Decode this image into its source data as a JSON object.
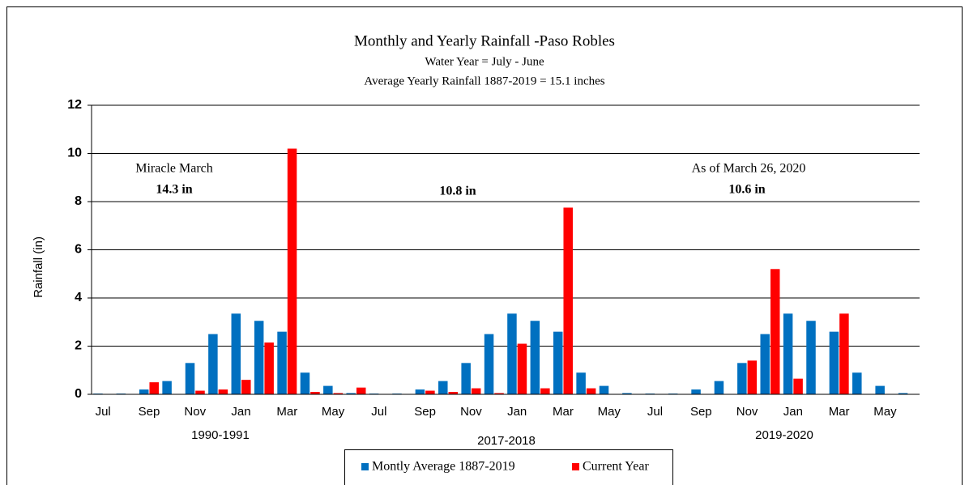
{
  "chart_data": {
    "type": "bar",
    "title": "Monthly and Yearly Rainfall -Paso Robles",
    "subtitle": [
      "Water Year = July  - June",
      "Average  Yearly  Rainfall  1887-2019 = 15.1 inches"
    ],
    "y_label": "Rainfall (in)",
    "categories": [
      "Jul",
      null,
      "Sep",
      null,
      "Nov",
      null,
      "Jan",
      null,
      "Mar",
      null,
      "May",
      null,
      "Jul",
      null,
      "Sep",
      null,
      "Nov",
      null,
      "Jan",
      null,
      "Mar",
      null,
      "May",
      null,
      "Jul",
      null,
      "Sep",
      null,
      "Nov",
      null,
      "Jan",
      null,
      "Mar",
      null,
      "May",
      null
    ],
    "groups": [
      "1990-1991",
      "2017-2018",
      "2019-2020"
    ],
    "series": [
      {
        "name": "Montly Average 1887-2019",
        "color": "#0070c0",
        "values": [
          0.03,
          0.03,
          0.2,
          0.55,
          1.3,
          2.5,
          3.35,
          3.05,
          2.6,
          0.9,
          0.35,
          0.05,
          0.03,
          0.03,
          0.2,
          0.55,
          1.3,
          2.5,
          3.35,
          3.05,
          2.6,
          0.9,
          0.35,
          0.05,
          0.03,
          0.03,
          0.2,
          0.55,
          1.3,
          2.5,
          3.35,
          3.05,
          2.6,
          0.9,
          0.35,
          0.05
        ]
      },
      {
        "name": "Current Year",
        "color": "#ff0000",
        "values": [
          0,
          0,
          0.5,
          0,
          0.15,
          0.2,
          0.6,
          2.15,
          10.2,
          0.1,
          0.05,
          0.28,
          0,
          0,
          0.15,
          0.1,
          0.25,
          0.05,
          2.1,
          0.25,
          7.75,
          0.25,
          0,
          0,
          0,
          0,
          0,
          0,
          1.4,
          5.2,
          0.65,
          0,
          3.35,
          null,
          null,
          null
        ]
      }
    ],
    "annotations": [
      {
        "text": "Miracle March",
        "color": "#000000"
      },
      {
        "text": "14.3 in",
        "color": "#ff0000"
      },
      {
        "text": "10.8 in",
        "color": "#ff0000"
      },
      {
        "text": "As of March 26, 2020",
        "color": "#000000"
      },
      {
        "text": "10.6 in",
        "color": "#ff0000"
      }
    ],
    "ylim": [
      0,
      12
    ],
    "yticks": [
      0,
      2,
      4,
      6,
      8,
      10,
      12
    ],
    "grid": true,
    "legend": "bottom"
  }
}
